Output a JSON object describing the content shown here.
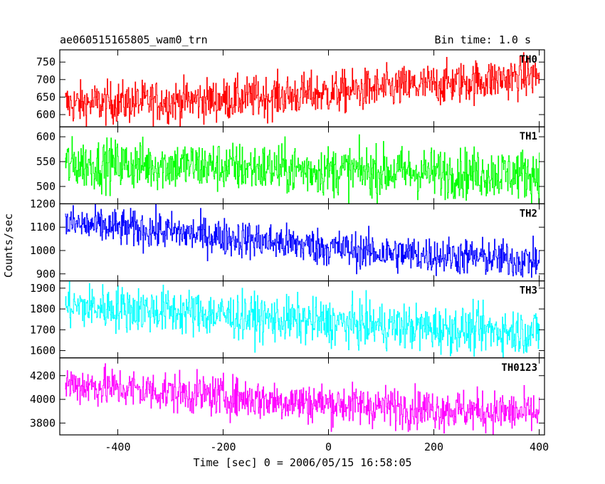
{
  "chart_data": {
    "type": "line",
    "title_left": "ae060515165805_wam0_trn",
    "title_right": "Bin time: 1.0 s",
    "xlabel": "Time [sec] 0 = 2006/05/15 16:58:05",
    "ylabel": "Counts/sec",
    "xlim": [
      -510,
      410
    ],
    "x_ticks": [
      -400,
      -200,
      0,
      200,
      400
    ],
    "x_start": -500,
    "x_end": 400,
    "bin": 1.0,
    "panels": [
      {
        "name": "TH0",
        "color": "#ff0000",
        "ylim": [
          565,
          785
        ],
        "y_ticks": [
          600,
          650,
          700,
          750
        ],
        "trend": [
          [
            -500,
            630
          ],
          [
            -200,
            643
          ],
          [
            0,
            662
          ],
          [
            200,
            685
          ],
          [
            400,
            712
          ]
        ],
        "noise": 30
      },
      {
        "name": "TH1",
        "color": "#00ff00",
        "ylim": [
          465,
          620
        ],
        "y_ticks": [
          500,
          550,
          600
        ],
        "trend": [
          [
            -500,
            545
          ],
          [
            -300,
            543
          ],
          [
            0,
            532
          ],
          [
            200,
            528
          ],
          [
            400,
            525
          ]
        ],
        "noise": 25
      },
      {
        "name": "TH2",
        "color": "#0000ff",
        "ylim": [
          870,
          1200
        ],
        "y_ticks": [
          900,
          1000,
          1100,
          1200
        ],
        "trend": [
          [
            -500,
            1115
          ],
          [
            -300,
            1080
          ],
          [
            -100,
            1035
          ],
          [
            100,
            990
          ],
          [
            250,
            975
          ],
          [
            400,
            955
          ]
        ],
        "noise": 40
      },
      {
        "name": "TH3",
        "color": "#00ffff",
        "ylim": [
          1565,
          1935
        ],
        "y_ticks": [
          1600,
          1700,
          1800,
          1900
        ],
        "trend": [
          [
            -500,
            1815
          ],
          [
            -300,
            1790
          ],
          [
            -100,
            1750
          ],
          [
            100,
            1720
          ],
          [
            250,
            1700
          ],
          [
            400,
            1690
          ]
        ],
        "noise": 55
      },
      {
        "name": "TH0123",
        "color": "#ff00ff",
        "ylim": [
          3700,
          4350
        ],
        "y_ticks": [
          3800,
          4000,
          4200
        ],
        "trend": [
          [
            -500,
            4130
          ],
          [
            -300,
            4060
          ],
          [
            -100,
            3990
          ],
          [
            100,
            3940
          ],
          [
            250,
            3910
          ],
          [
            400,
            3880
          ]
        ],
        "noise": 85
      }
    ]
  }
}
